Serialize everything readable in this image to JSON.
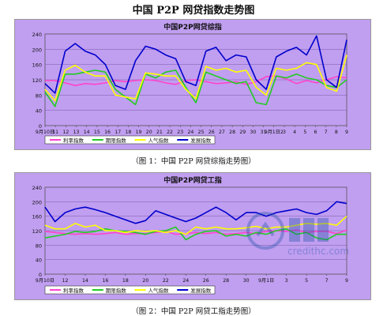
{
  "page_title": "中国 P2P 网贷指数走势图",
  "captions": [
    "（图 1：中国 P2P 网贷综指走势图）",
    "（图 2：中国 P2P 网贷工指走势图）"
  ],
  "watermark": {
    "brand": "信用宝",
    "url": "credithc.com"
  },
  "colors": {
    "plot_bg": "#c09ef0",
    "legend_bg": "#ffffff",
    "frame": "#888888"
  },
  "chart_data": [
    {
      "type": "line",
      "title": "中国P2P网贷综指",
      "categories": [
        "9月10日",
        "11",
        "12",
        "13",
        "14",
        "15",
        "16",
        "17",
        "18",
        "19",
        "20",
        "21",
        "22",
        "23",
        "24",
        "25",
        "26",
        "27",
        "28",
        "29",
        "30",
        "31",
        "9月1日",
        "2",
        "3",
        "4",
        "5",
        "6",
        "7",
        "8",
        "9"
      ],
      "x_tick_labels": [
        "9月10日",
        "11",
        "12",
        "13",
        "14",
        "15",
        "16",
        "17",
        "18",
        "19",
        "20",
        "21",
        "22",
        "23",
        "24",
        "25",
        "26",
        "27",
        "28",
        "29",
        "30",
        "31",
        "9月1日2",
        "3",
        "4",
        "5",
        "6",
        "7",
        "8",
        "9"
      ],
      "ylim": [
        0,
        240
      ],
      "yticks": [
        0,
        40,
        80,
        120,
        160,
        200,
        240
      ],
      "grid": true,
      "legend_position": "bottom",
      "series": [
        {
          "name": "利率指数",
          "color": "#ff44cc",
          "values": [
            118,
            118,
            112,
            105,
            110,
            108,
            112,
            118,
            115,
            118,
            120,
            118,
            112,
            108,
            118,
            120,
            115,
            110,
            112,
            115,
            108,
            115,
            128,
            130,
            122,
            110,
            118,
            112,
            120,
            128,
            125
          ]
        },
        {
          "name": "期限指数",
          "color": "#22cc22",
          "values": [
            88,
            50,
            135,
            135,
            140,
            145,
            140,
            95,
            75,
            55,
            135,
            125,
            140,
            145,
            100,
            60,
            140,
            130,
            120,
            110,
            115,
            60,
            55,
            130,
            125,
            135,
            125,
            120,
            105,
            100,
            120
          ]
        },
        {
          "name": "人气指数",
          "color": "#ffff00",
          "values": [
            95,
            65,
            145,
            158,
            140,
            130,
            130,
            80,
            75,
            70,
            138,
            135,
            130,
            130,
            95,
            70,
            155,
            145,
            150,
            140,
            145,
            100,
            80,
            150,
            145,
            150,
            165,
            160,
            100,
            90,
            185
          ]
        },
        {
          "name": "发展指数",
          "color": "#0000cc",
          "values": [
            110,
            85,
            195,
            215,
            195,
            185,
            160,
            105,
            95,
            170,
            208,
            200,
            185,
            175,
            115,
            105,
            195,
            205,
            170,
            185,
            180,
            120,
            95,
            180,
            195,
            205,
            185,
            235,
            120,
            100,
            225
          ]
        }
      ]
    },
    {
      "type": "line",
      "title": "中国P2P网贷工指",
      "categories": [
        "9月10日",
        "11",
        "12",
        "13",
        "14",
        "15",
        "16",
        "17",
        "18",
        "19",
        "20",
        "21",
        "22",
        "23",
        "24",
        "25",
        "26",
        "27",
        "28",
        "29",
        "30",
        "31",
        "9月1日",
        "2",
        "3",
        "4",
        "5",
        "6",
        "7",
        "8",
        "9"
      ],
      "x_tick_labels": [
        "9月10日",
        "12",
        "14",
        "16",
        "18",
        "20",
        "22",
        "24",
        "26",
        "28",
        "30",
        "9月1日",
        "3",
        "5",
        "7",
        "9"
      ],
      "ylim": [
        0,
        240
      ],
      "yticks": [
        0,
        40,
        80,
        120,
        160,
        200,
        240
      ],
      "grid": true,
      "legend_position": "bottom",
      "series": [
        {
          "name": "利率指数",
          "color": "#ff44cc",
          "values": [
            118,
            115,
            112,
            110,
            112,
            110,
            112,
            115,
            110,
            112,
            112,
            115,
            118,
            110,
            112,
            115,
            112,
            115,
            110,
            112,
            115,
            112,
            118,
            120,
            118,
            122,
            115,
            118,
            118,
            112,
            122
          ]
        },
        {
          "name": "期限指数",
          "color": "#22cc22",
          "values": [
            100,
            105,
            110,
            118,
            115,
            118,
            125,
            120,
            118,
            115,
            110,
            118,
            120,
            130,
            95,
            110,
            118,
            120,
            105,
            110,
            105,
            115,
            110,
            120,
            125,
            110,
            115,
            100,
            95,
            110,
            110
          ]
        },
        {
          "name": "人气指数",
          "color": "#ffff00",
          "values": [
            135,
            125,
            125,
            140,
            130,
            135,
            120,
            120,
            115,
            120,
            118,
            120,
            115,
            120,
            110,
            130,
            125,
            130,
            125,
            125,
            128,
            132,
            125,
            130,
            130,
            135,
            140,
            138,
            140,
            135,
            160
          ]
        },
        {
          "name": "发展指数",
          "color": "#0000cc",
          "values": [
            185,
            145,
            170,
            180,
            185,
            178,
            170,
            160,
            150,
            140,
            148,
            175,
            165,
            155,
            145,
            155,
            170,
            185,
            170,
            150,
            170,
            170,
            160,
            170,
            175,
            180,
            170,
            165,
            175,
            200,
            195
          ]
        }
      ]
    }
  ]
}
